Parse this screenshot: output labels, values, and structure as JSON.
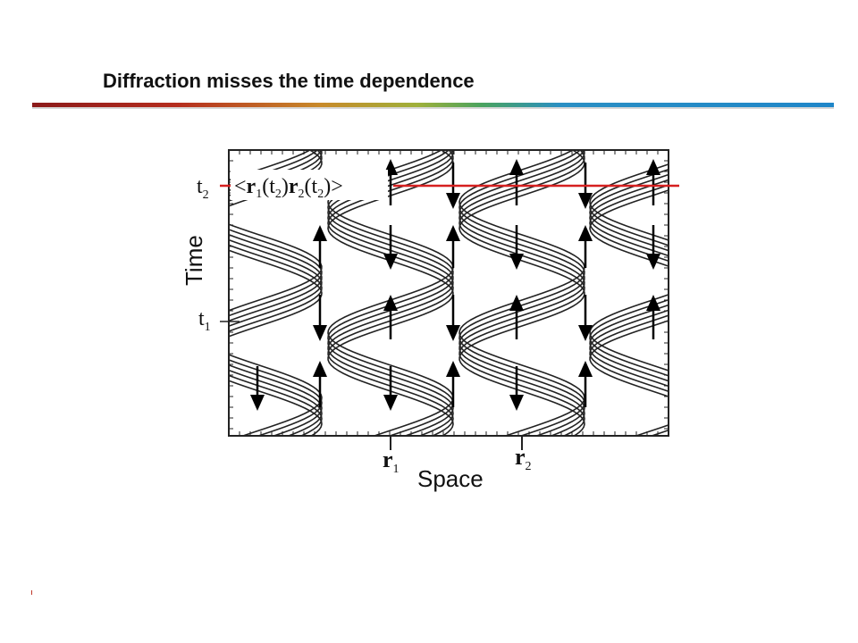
{
  "slide": {
    "title": "Diffraction misses the time dependence"
  },
  "diagram": {
    "y_axis_label": "Time",
    "x_axis_label": "Space",
    "t2_label": "t",
    "t2_sub": "2",
    "t1_label": "t",
    "t1_sub": "1",
    "r1_label": "r",
    "r1_sub": "1",
    "r2_label": "r",
    "r2_sub": "2",
    "correlation_label": {
      "open": "<",
      "r1": "r",
      "r1_sub": "1",
      "r1_arg": "(t",
      "r1_arg_sub": "2",
      "r1_close": ")",
      "r2": "r",
      "r2_sub": "2",
      "r2_arg": "(t",
      "r2_arg_sub": "2",
      "r2_close": ")>"
    },
    "colors": {
      "accent_line": "#d62020",
      "curves": "#222222",
      "frame": "#222222"
    }
  }
}
